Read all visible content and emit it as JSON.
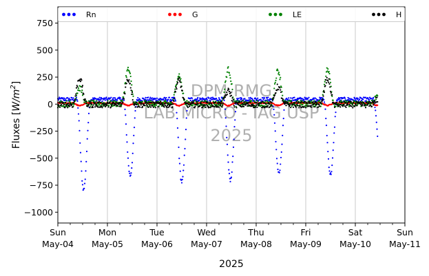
{
  "chart_data": {
    "type": "scatter",
    "xlabel": "2025",
    "ylabel": "Fluxes [W/m²]",
    "ylabel_prefix": "Fluxes [",
    "ylabel_unit_base": "W/m",
    "ylabel_unit_exp": "2",
    "ylabel_suffix": "]",
    "ylim": [
      -1100,
      900
    ],
    "xlim": [
      0,
      7
    ],
    "grid": "vertical-major",
    "legend_placement": "top",
    "y_ticks": [
      -1000,
      -750,
      -500,
      -250,
      0,
      250,
      500,
      750
    ],
    "x_ticks": [
      {
        "day": "Sun",
        "date": "May-04"
      },
      {
        "day": "Mon",
        "date": "May-05"
      },
      {
        "day": "Tue",
        "date": "May-06"
      },
      {
        "day": "Wed",
        "date": "May-07"
      },
      {
        "day": "Thu",
        "date": "May-08"
      },
      {
        "day": "Fri",
        "date": "May-09"
      },
      {
        "day": "Sat",
        "date": "May-10"
      },
      {
        "day": "Sun",
        "date": "May-11"
      }
    ],
    "watermark": [
      "DPM-RMG",
      "LAB MICRO - IAG USP",
      "2025"
    ],
    "series": [
      {
        "name": "Rn",
        "color": "#0000ff",
        "night": 45,
        "day_peaks": [
          -790,
          -660,
          -720,
          -700,
          -640,
          -650,
          -430
        ]
      },
      {
        "name": "G",
        "color": "#ff0000",
        "night": 10,
        "day_peaks": [
          -15,
          -12,
          -15,
          -14,
          -12,
          -12,
          -10
        ]
      },
      {
        "name": "LE",
        "color": "#008000",
        "night": 5,
        "day_peaks": [
          150,
          320,
          270,
          320,
          310,
          320,
          60
        ]
      },
      {
        "name": "H",
        "color": "#000000",
        "night": -5,
        "day_peaks": [
          240,
          230,
          220,
          120,
          160,
          230,
          40
        ]
      }
    ]
  }
}
